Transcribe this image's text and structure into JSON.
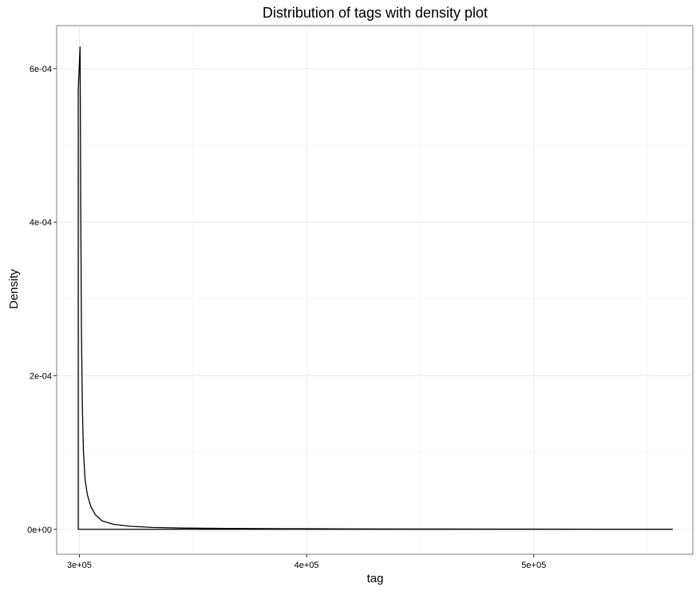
{
  "chart_data": {
    "type": "line",
    "title": "Distribution of tags with density plot",
    "xlabel": "tag",
    "ylabel": "Density",
    "xlim": [
      290000,
      570000
    ],
    "ylim": [
      -3.25e-05,
      0.000656
    ],
    "grid": true,
    "x_ticks": [
      {
        "value": 300000,
        "label": "3e+05"
      },
      {
        "value": 400000,
        "label": "4e+05"
      },
      {
        "value": 500000,
        "label": "5e+05"
      }
    ],
    "y_ticks": [
      {
        "value": 0,
        "label": "0e+00"
      },
      {
        "value": 0.0002,
        "label": "2e-04"
      },
      {
        "value": 0.0004,
        "label": "4e-04"
      },
      {
        "value": 0.0006,
        "label": "6e-04"
      }
    ],
    "series": [
      {
        "color": "#000000",
        "points": [
          [
            300000,
            0.000572
          ],
          [
            300300,
            0.000628
          ],
          [
            300600,
            0.00042
          ],
          [
            300900,
            0.00026
          ],
          [
            301300,
            0.00016
          ],
          [
            301800,
            0.0001
          ],
          [
            302500,
            6.5e-05
          ],
          [
            303500,
            4.5e-05
          ],
          [
            305000,
            3e-05
          ],
          [
            307000,
            1.9e-05
          ],
          [
            310000,
            1.1e-05
          ],
          [
            315000,
            6.5e-06
          ],
          [
            322000,
            4e-06
          ],
          [
            332000,
            2.5e-06
          ],
          [
            345000,
            1.6e-06
          ],
          [
            365000,
            1.1e-06
          ],
          [
            390000,
            8e-07
          ],
          [
            420000,
            5e-07
          ],
          [
            460000,
            3e-07
          ],
          [
            500000,
            2e-07
          ],
          [
            540000,
            1e-07
          ],
          [
            561000,
            1e-07
          ]
        ]
      }
    ],
    "baseline": {
      "from": 299500,
      "to": 561000,
      "y": 0
    }
  }
}
